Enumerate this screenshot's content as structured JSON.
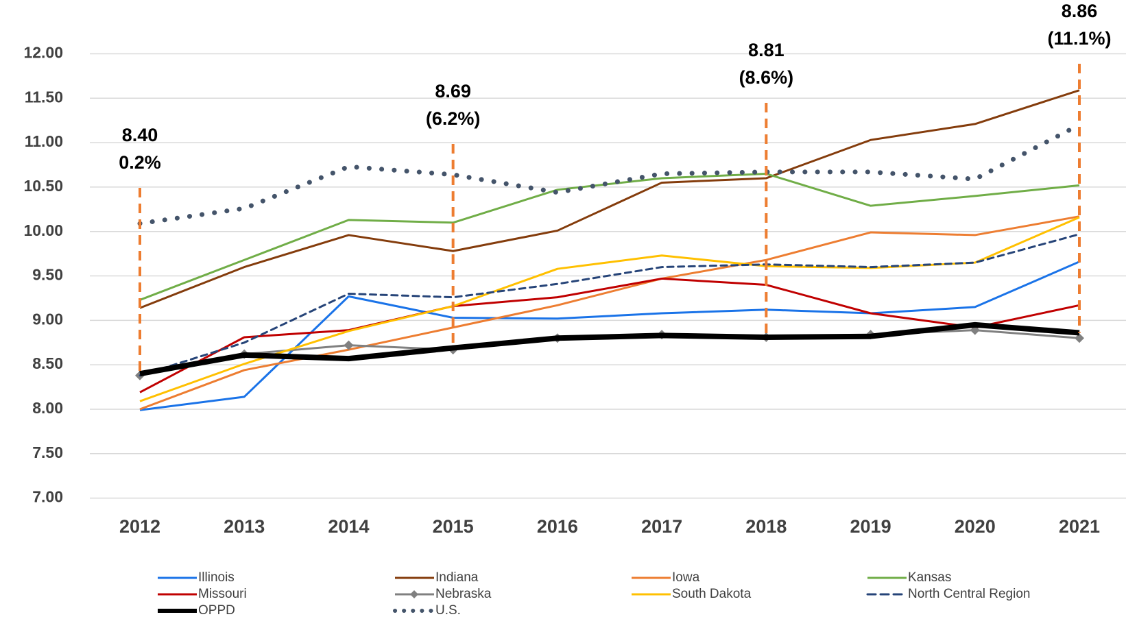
{
  "chart_data": {
    "type": "line",
    "categories": [
      "2012",
      "2013",
      "2014",
      "2015",
      "2016",
      "2017",
      "2018",
      "2019",
      "2020",
      "2021"
    ],
    "ylim": [
      7,
      12
    ],
    "yticks": [
      {
        "value": 7,
        "label": "7.00"
      },
      {
        "value": 7.5,
        "label": "7.50"
      },
      {
        "value": 8,
        "label": "8.00"
      },
      {
        "value": 8.5,
        "label": "8.50"
      },
      {
        "value": 9,
        "label": "9.00"
      },
      {
        "value": 9.5,
        "label": "9.50"
      },
      {
        "value": 10,
        "label": "10.00"
      },
      {
        "value": 10.5,
        "label": "10.50"
      },
      {
        "value": 11,
        "label": "11.00"
      },
      {
        "value": 11.5,
        "label": "11.50"
      },
      {
        "value": 12,
        "label": "12.00"
      }
    ],
    "grid": true,
    "series": [
      {
        "name": "Illinois",
        "color": "#1a73e8",
        "width": 3,
        "values": [
          7.99,
          8.14,
          9.27,
          9.03,
          9.02,
          9.08,
          9.12,
          9.08,
          9.15,
          9.66
        ]
      },
      {
        "name": "Indiana",
        "color": "#843c0c",
        "width": 3,
        "values": [
          9.14,
          9.6,
          9.96,
          9.78,
          10.01,
          10.55,
          10.6,
          11.03,
          11.21,
          11.59
        ]
      },
      {
        "name": "Iowa",
        "color": "#ed7d31",
        "width": 3,
        "values": [
          8.0,
          8.44,
          8.67,
          8.92,
          9.17,
          9.47,
          9.68,
          9.99,
          9.96,
          10.17
        ]
      },
      {
        "name": "Kansas",
        "color": "#70ad47",
        "width": 3,
        "values": [
          9.23,
          9.68,
          10.13,
          10.1,
          10.47,
          10.6,
          10.65,
          10.29,
          10.4,
          10.52
        ]
      },
      {
        "name": "Missouri",
        "color": "#c00000",
        "width": 3,
        "values": [
          8.19,
          8.81,
          8.89,
          9.16,
          9.26,
          9.47,
          9.4,
          9.08,
          8.92,
          9.17
        ]
      },
      {
        "name": "Nebraska",
        "color": "#808080",
        "width": 3,
        "marker": "diamond",
        "values": [
          8.38,
          8.62,
          8.72,
          8.67,
          8.8,
          8.84,
          8.81,
          8.84,
          8.89,
          8.8
        ]
      },
      {
        "name": "South Dakota",
        "color": "#ffc000",
        "width": 3,
        "values": [
          8.09,
          8.51,
          8.88,
          9.16,
          9.58,
          9.73,
          9.61,
          9.59,
          9.65,
          10.16
        ]
      },
      {
        "name": "North Central Region",
        "color": "#264478",
        "width": 3,
        "dash": "dashed",
        "values": [
          8.38,
          8.75,
          9.3,
          9.26,
          9.41,
          9.6,
          9.63,
          9.6,
          9.65,
          9.97
        ]
      },
      {
        "name": "OPPD",
        "color": "#000000",
        "width": 8,
        "values": [
          8.4,
          8.61,
          8.57,
          8.69,
          8.8,
          8.83,
          8.81,
          8.82,
          8.95,
          8.86
        ]
      },
      {
        "name": "U.S.",
        "color": "#44546a",
        "width": 7,
        "dash": "dotted",
        "values": [
          10.09,
          10.26,
          10.73,
          10.64,
          10.44,
          10.65,
          10.67,
          10.67,
          10.59,
          11.2
        ]
      }
    ],
    "annotations": [
      {
        "x": "2012",
        "lines": [
          "8.40",
          "0.2%"
        ]
      },
      {
        "x": "2015",
        "lines": [
          "8.69",
          "(6.2%)"
        ]
      },
      {
        "x": "2018",
        "lines": [
          "8.81",
          "(8.6%)"
        ]
      },
      {
        "x": "2021",
        "lines": [
          "8.86",
          "(11.1%)"
        ]
      }
    ],
    "annotation_color": "#ed7d31"
  }
}
